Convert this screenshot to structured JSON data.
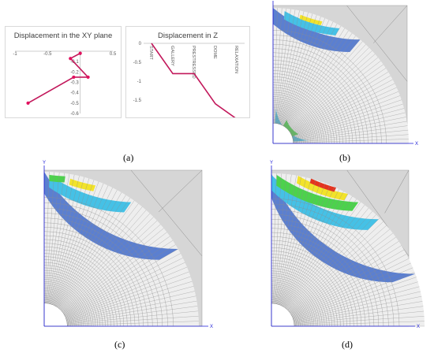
{
  "chart_data": [
    {
      "type": "scatter",
      "title": "Displacement in the XY plane",
      "xlim": [
        -1,
        0.5
      ],
      "ylim": [
        -0.6,
        0
      ],
      "xticks": [
        "-1",
        "-0.5",
        "0",
        "0.5"
      ],
      "yticks": [
        "0",
        "-0.1",
        "-0.2",
        "-0.3",
        "-0.4",
        "-0.5",
        "-0.6"
      ],
      "series": [
        {
          "points": [
            [
              0,
              -0.02
            ],
            [
              -0.15,
              -0.07
            ],
            [
              0.12,
              -0.25
            ],
            [
              -0.1,
              -0.25
            ],
            [
              -0.8,
              -0.5
            ]
          ]
        }
      ],
      "line_color": "#c2185b",
      "marker_color": "#e2105e",
      "grid": false
    },
    {
      "type": "line",
      "title": "Displacement in Z",
      "categories": [
        "START",
        "GALLERY",
        "PRESTRESSED",
        "DOME",
        "RELAXATION"
      ],
      "values": [
        0,
        -0.8,
        -0.8,
        -1.6,
        -2.0
      ],
      "yticks": [
        "0",
        "-0.5",
        "-1",
        "-1.5",
        "-2",
        "-2.5"
      ],
      "ylim": [
        -2.5,
        0
      ],
      "line_color": "#c2185b",
      "grid": false
    }
  ],
  "captions": {
    "a": "(a)",
    "b": "(b)",
    "c": "(c)",
    "d": "(d)"
  },
  "fem_axis": {
    "x": "X",
    "y": "Y"
  },
  "colors": {
    "background_gray": "#d6d6d6",
    "mesh_line": "#8c8c8c",
    "contour_blue": "#5b7fd0",
    "contour_cyan": "#45c1e6",
    "contour_green": "#4cd24c",
    "contour_yellow": "#f2e32a",
    "contour_red": "#e4331e",
    "axis_blue": "#1a1ad6"
  }
}
